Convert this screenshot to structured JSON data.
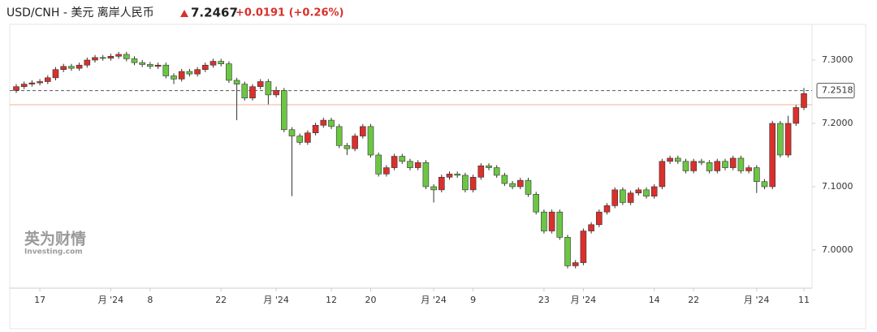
{
  "chart_data": {
    "type": "candlestick",
    "title": "USD/CNH - 美元 离岸人民币",
    "price": "7.2467",
    "change": "+0.0191 (+0.26%)",
    "watermark": "英为财情",
    "watermark_sub": "Investing.com",
    "up_color": "#d9302c",
    "down_color": "#6cc644",
    "categories": [
      null,
      null,
      null,
      "17",
      null,
      null,
      null,
      null,
      null,
      null,
      null,
      null,
      "月 '24",
      null,
      null,
      null,
      null,
      "8",
      null,
      null,
      null,
      null,
      null,
      null,
      null,
      null,
      "22",
      null,
      null,
      null,
      null,
      null,
      null,
      "月 '24",
      null,
      null,
      null,
      null,
      null,
      null,
      "12",
      null,
      null,
      null,
      null,
      "20",
      null,
      null,
      null,
      null,
      null,
      null,
      null,
      "月 '24",
      null,
      null,
      null,
      null,
      "9",
      null,
      null,
      null,
      null,
      null,
      null,
      null,
      null,
      "23",
      null,
      null,
      null,
      null,
      "月 '24",
      null,
      null,
      null,
      null,
      null,
      null,
      null,
      null,
      "14",
      null,
      null,
      null,
      null,
      "22",
      null,
      null,
      null,
      null,
      null,
      null,
      null,
      "月 '24",
      null,
      null,
      null,
      null,
      null,
      "11"
    ],
    "open": [
      7.252,
      7.258,
      7.262,
      7.264,
      7.266,
      7.272,
      7.285,
      7.29,
      7.287,
      7.292,
      7.3,
      7.304,
      7.303,
      7.306,
      7.309,
      7.302,
      7.296,
      7.293,
      7.29,
      7.292,
      7.275,
      7.27,
      7.282,
      7.278,
      7.285,
      7.292,
      7.298,
      7.294,
      7.268,
      7.262,
      7.24,
      7.258,
      7.266,
      7.245,
      7.252,
      7.19,
      7.18,
      7.17,
      7.185,
      7.197,
      7.205,
      7.195,
      7.165,
      7.16,
      7.18,
      7.195,
      7.15,
      7.12,
      7.13,
      7.148,
      7.14,
      7.13,
      7.138,
      7.1,
      7.095,
      7.115,
      7.12,
      7.118,
      7.095,
      7.115,
      7.133,
      7.13,
      7.118,
      7.105,
      7.1,
      7.11,
      7.088,
      7.06,
      7.03,
      7.06,
      7.02,
      6.975,
      6.98,
      7.03,
      7.04,
      7.06,
      7.07,
      7.095,
      7.075,
      7.09,
      7.095,
      7.085,
      7.1,
      7.14,
      7.145,
      7.14,
      7.125,
      7.14,
      7.138,
      7.125,
      7.14,
      7.13,
      7.145,
      7.125,
      7.13,
      7.108,
      7.1,
      7.2,
      7.15,
      7.2,
      7.225
    ],
    "high": [
      7.262,
      7.266,
      7.268,
      7.27,
      7.276,
      7.289,
      7.294,
      7.294,
      7.296,
      7.304,
      7.308,
      7.308,
      7.31,
      7.313,
      7.313,
      7.306,
      7.3,
      7.297,
      7.296,
      7.296,
      7.279,
      7.286,
      7.286,
      7.289,
      7.296,
      7.302,
      7.302,
      7.298,
      7.272,
      7.266,
      7.262,
      7.27,
      7.27,
      7.258,
      7.256,
      7.194,
      7.184,
      7.189,
      7.201,
      7.209,
      7.209,
      7.199,
      7.169,
      7.184,
      7.199,
      7.199,
      7.154,
      7.134,
      7.152,
      7.152,
      7.144,
      7.142,
      7.142,
      7.104,
      7.119,
      7.124,
      7.124,
      7.122,
      7.119,
      7.137,
      7.137,
      7.134,
      7.122,
      7.109,
      7.114,
      7.114,
      7.092,
      7.064,
      7.064,
      7.064,
      7.024,
      6.984,
      7.034,
      7.044,
      7.064,
      7.074,
      7.099,
      7.099,
      7.094,
      7.099,
      7.099,
      7.104,
      7.144,
      7.149,
      7.149,
      7.144,
      7.144,
      7.144,
      7.142,
      7.144,
      7.144,
      7.149,
      7.149,
      7.134,
      7.134,
      7.112,
      7.204,
      7.204,
      7.212,
      7.229,
      7.256
    ],
    "low": [
      7.248,
      7.254,
      7.258,
      7.26,
      7.262,
      7.268,
      7.281,
      7.283,
      7.283,
      7.288,
      7.296,
      7.299,
      7.299,
      7.302,
      7.298,
      7.292,
      7.289,
      7.286,
      7.286,
      7.271,
      7.262,
      7.266,
      7.274,
      7.274,
      7.281,
      7.288,
      7.29,
      7.264,
      7.205,
      7.236,
      7.236,
      7.254,
      7.23,
      7.241,
      7.186,
      7.085,
      7.166,
      7.166,
      7.181,
      7.193,
      7.191,
      7.161,
      7.15,
      7.156,
      7.176,
      7.146,
      7.116,
      7.116,
      7.126,
      7.136,
      7.126,
      7.126,
      7.096,
      7.075,
      7.091,
      7.111,
      7.114,
      7.091,
      7.091,
      7.111,
      7.126,
      7.114,
      7.101,
      7.096,
      7.096,
      7.084,
      7.056,
      7.026,
      7.026,
      7.016,
      6.971,
      6.971,
      6.976,
      7.026,
      7.036,
      7.056,
      7.066,
      7.071,
      7.071,
      7.086,
      7.081,
      7.081,
      7.096,
      7.136,
      7.136,
      7.121,
      7.121,
      7.134,
      7.121,
      7.121,
      7.126,
      7.126,
      7.121,
      7.121,
      7.09,
      7.096,
      7.096,
      7.146,
      7.146,
      7.196,
      7.221
    ],
    "close": [
      7.258,
      7.262,
      7.264,
      7.266,
      7.272,
      7.285,
      7.29,
      7.287,
      7.292,
      7.3,
      7.304,
      7.303,
      7.306,
      7.309,
      7.302,
      7.296,
      7.293,
      7.29,
      7.292,
      7.275,
      7.27,
      7.282,
      7.278,
      7.285,
      7.292,
      7.298,
      7.294,
      7.268,
      7.262,
      7.24,
      7.258,
      7.266,
      7.245,
      7.252,
      7.19,
      7.18,
      7.17,
      7.185,
      7.197,
      7.205,
      7.195,
      7.165,
      7.16,
      7.18,
      7.195,
      7.15,
      7.12,
      7.13,
      7.148,
      7.14,
      7.13,
      7.138,
      7.1,
      7.095,
      7.115,
      7.12,
      7.118,
      7.095,
      7.115,
      7.133,
      7.13,
      7.118,
      7.105,
      7.1,
      7.11,
      7.088,
      7.06,
      7.03,
      7.06,
      7.02,
      6.975,
      6.98,
      7.03,
      7.04,
      7.06,
      7.07,
      7.095,
      7.075,
      7.09,
      7.095,
      7.085,
      7.1,
      7.14,
      7.145,
      7.14,
      7.125,
      7.14,
      7.138,
      7.125,
      7.14,
      7.13,
      7.145,
      7.125,
      7.13,
      7.108,
      7.1,
      7.2,
      7.15,
      7.2,
      7.225,
      7.247
    ],
    "ylim": [
      6.9397,
      7.3564
    ],
    "yticks": [
      {
        "value": 7.0,
        "label": "7.0000"
      },
      {
        "value": 7.1,
        "label": "7.1000"
      },
      {
        "value": 7.2,
        "label": "7.2000"
      },
      {
        "value": 7.3,
        "label": "7.3000"
      }
    ],
    "last_price": {
      "value": 7.2518,
      "label": "7.2518"
    },
    "reference_line": 7.2295
  }
}
